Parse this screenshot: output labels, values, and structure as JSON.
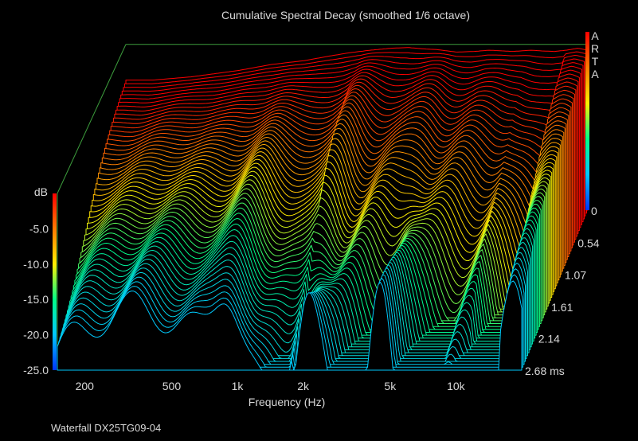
{
  "caption": "Waterfall DX25TG09-04",
  "brand_letters": [
    "A",
    "R",
    "T",
    "A"
  ],
  "chart_data": {
    "type": "waterfall",
    "title": "Cumulative Spectral Decay (smoothed 1/6 octave)",
    "xlabel": "Frequency (Hz)",
    "ylabel": "dB",
    "zlabel_unit": "ms",
    "x_scale": "log",
    "xlim": [
      150,
      20000
    ],
    "ylim": [
      -25,
      0
    ],
    "zlim": [
      0,
      2.68
    ],
    "x_ticks": [
      {
        "value": 200,
        "label": "200"
      },
      {
        "value": 500,
        "label": "500"
      },
      {
        "value": 1000,
        "label": "1k"
      },
      {
        "value": 2000,
        "label": "2k"
      },
      {
        "value": 5000,
        "label": "5k"
      },
      {
        "value": 10000,
        "label": "10k"
      }
    ],
    "y_ticks": [
      {
        "value": -5,
        "label": "-5.0"
      },
      {
        "value": -10,
        "label": "-10.0"
      },
      {
        "value": -15,
        "label": "-15.0"
      },
      {
        "value": -20,
        "label": "-20.0"
      },
      {
        "value": -25,
        "label": "-25.0"
      }
    ],
    "z_ticks": [
      {
        "value": 0,
        "label": "0"
      },
      {
        "value": 0.54,
        "label": "0.54"
      },
      {
        "value": 1.07,
        "label": "1.07"
      },
      {
        "value": 1.61,
        "label": "1.61"
      },
      {
        "value": 2.14,
        "label": "2.14"
      },
      {
        "value": 2.68,
        "label": "2.68 ms"
      }
    ],
    "floor_db": -25,
    "slices": 56,
    "initial_response": {
      "freq": [
        150,
        200,
        300,
        500,
        700,
        1000,
        1300,
        1600,
        2000,
        2500,
        3000,
        3500,
        4000,
        4500,
        5000,
        6000,
        7000,
        8000,
        9000,
        10000,
        11000,
        12000,
        14000,
        16000,
        18000,
        20000
      ],
      "db": [
        -5.0,
        -5.0,
        -4.5,
        -3.5,
        -2.6,
        -2.0,
        -1.3,
        -0.8,
        -0.4,
        -0.1,
        0.0,
        -0.2,
        -0.3,
        -0.5,
        -0.7,
        -0.6,
        -0.4,
        -0.5,
        -0.6,
        -0.5,
        -0.4,
        -0.5,
        -0.6,
        -0.4,
        -0.1,
        -0.4
      ]
    },
    "colormap": [
      "#0033ff",
      "#00c8ff",
      "#00ff88",
      "#fff000",
      "#ff7a00",
      "#ff0000"
    ]
  }
}
